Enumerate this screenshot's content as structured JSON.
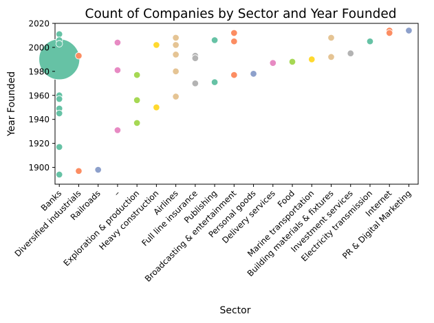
{
  "chart_data": {
    "type": "scatter",
    "title": "Count of Companies by Sector and Year Founded",
    "xlabel": "Sector",
    "ylabel": "Year Founded",
    "ylim": [
      1886,
      2020
    ],
    "yticks": [
      1900,
      1920,
      1940,
      1960,
      1980,
      2000,
      2020
    ],
    "categories": [
      "Banks",
      "Diversified industrials",
      "Railroads",
      "–",
      "Exploration & production",
      "Heavy construction",
      "Airlines",
      "Full line insurance",
      "Publishing",
      "Broadcasting & entertainment",
      "Personal goods",
      "Delivery services",
      "Food",
      "Marine transportation",
      "Building materials & fixtures",
      "Investment services",
      "Electricity transmission",
      "Internet",
      "PR & Digital Marketing"
    ],
    "colors": {
      "Banks": "#66c2a5",
      "Diversified industrials": "#fc8d62",
      "Railroads": "#8da0cb",
      "–": "#e78ac3",
      "Exploration & production": "#a6d854",
      "Heavy construction": "#ffd92f",
      "Airlines": "#e5c494",
      "Full line insurance": "#b3b3b3",
      "Publishing": "#66c2a5",
      "Broadcasting & entertainment": "#fc8d62",
      "Personal goods": "#8da0cb",
      "Delivery services": "#e78ac3",
      "Food": "#a6d854",
      "Marine transportation": "#ffd92f",
      "Building materials & fixtures": "#e5c494",
      "Investment services": "#b3b3b3",
      "Electricity transmission": "#66c2a5",
      "Internet": "#fc8d62",
      "PR & Digital Marketing": "#8da0cb"
    },
    "points": [
      {
        "sector": "Banks",
        "year": 1990,
        "count": 10
      },
      {
        "sector": "Banks",
        "year": 2011,
        "count": 1
      },
      {
        "sector": "Banks",
        "year": 2006,
        "count": 1
      },
      {
        "sector": "Banks",
        "year": 2003,
        "count": 1
      },
      {
        "sector": "Banks",
        "year": 1960,
        "count": 1
      },
      {
        "sector": "Banks",
        "year": 1957,
        "count": 1
      },
      {
        "sector": "Banks",
        "year": 1949,
        "count": 1
      },
      {
        "sector": "Banks",
        "year": 1945,
        "count": 1
      },
      {
        "sector": "Banks",
        "year": 1917,
        "count": 1
      },
      {
        "sector": "Banks",
        "year": 1894,
        "count": 1
      },
      {
        "sector": "Diversified industrials",
        "year": 1993,
        "count": 1
      },
      {
        "sector": "Diversified industrials",
        "year": 1897,
        "count": 1
      },
      {
        "sector": "Railroads",
        "year": 1898,
        "count": 1
      },
      {
        "sector": "–",
        "year": 2004,
        "count": 1
      },
      {
        "sector": "–",
        "year": 1981,
        "count": 1
      },
      {
        "sector": "–",
        "year": 1931,
        "count": 1
      },
      {
        "sector": "Exploration & production",
        "year": 1977,
        "count": 1
      },
      {
        "sector": "Exploration & production",
        "year": 1956,
        "count": 1
      },
      {
        "sector": "Exploration & production",
        "year": 1937,
        "count": 1
      },
      {
        "sector": "Heavy construction",
        "year": 2002,
        "count": 1
      },
      {
        "sector": "Heavy construction",
        "year": 1950,
        "count": 1
      },
      {
        "sector": "Airlines",
        "year": 2008,
        "count": 1
      },
      {
        "sector": "Airlines",
        "year": 2002,
        "count": 1
      },
      {
        "sector": "Airlines",
        "year": 1994,
        "count": 1
      },
      {
        "sector": "Airlines",
        "year": 1980,
        "count": 1
      },
      {
        "sector": "Airlines",
        "year": 1959,
        "count": 1
      },
      {
        "sector": "Full line insurance",
        "year": 1993,
        "count": 1
      },
      {
        "sector": "Full line insurance",
        "year": 1991,
        "count": 1
      },
      {
        "sector": "Full line insurance",
        "year": 1970,
        "count": 1
      },
      {
        "sector": "Publishing",
        "year": 2006,
        "count": 1
      },
      {
        "sector": "Publishing",
        "year": 1971,
        "count": 1
      },
      {
        "sector": "Broadcasting & entertainment",
        "year": 2012,
        "count": 1
      },
      {
        "sector": "Broadcasting & entertainment",
        "year": 2005,
        "count": 1
      },
      {
        "sector": "Broadcasting & entertainment",
        "year": 1977,
        "count": 1
      },
      {
        "sector": "Personal goods",
        "year": 1978,
        "count": 1
      },
      {
        "sector": "Delivery services",
        "year": 1987,
        "count": 1
      },
      {
        "sector": "Food",
        "year": 1988,
        "count": 1
      },
      {
        "sector": "Marine transportation",
        "year": 1990,
        "count": 1
      },
      {
        "sector": "Building materials & fixtures",
        "year": 2008,
        "count": 1
      },
      {
        "sector": "Building materials & fixtures",
        "year": 1992,
        "count": 1
      },
      {
        "sector": "Investment services",
        "year": 1995,
        "count": 1
      },
      {
        "sector": "Electricity transmission",
        "year": 2005,
        "count": 1
      },
      {
        "sector": "Internet",
        "year": 2014,
        "count": 1
      },
      {
        "sector": "Internet",
        "year": 2012,
        "count": 1
      },
      {
        "sector": "PR & Digital Marketing",
        "year": 2014,
        "count": 1
      }
    ],
    "grid": false,
    "legend": "none"
  }
}
